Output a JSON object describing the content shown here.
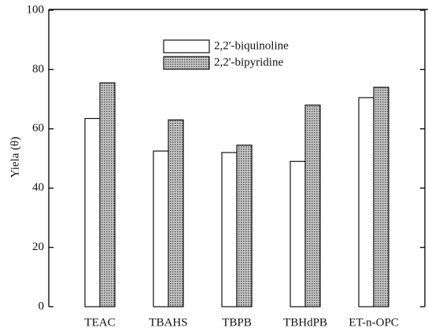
{
  "chart_data": {
    "type": "bar",
    "y_label": "Yiela (θ)",
    "categories": [
      "TEAC",
      "TBAHS",
      "TBPB",
      "TBHdPB",
      "ET-n-OPC"
    ],
    "series": [
      {
        "name": "2,2'-biquinoline",
        "color": "#ffffff",
        "values": [
          63.5,
          52.5,
          52,
          49,
          70.5
        ]
      },
      {
        "name": "2,2'-bipyridine",
        "color": "#a8a8a8",
        "values": [
          75.5,
          63,
          54.5,
          68,
          74
        ]
      }
    ],
    "ylim": [
      0,
      100
    ],
    "yticks": [
      0,
      20,
      40,
      60,
      80,
      100
    ]
  }
}
